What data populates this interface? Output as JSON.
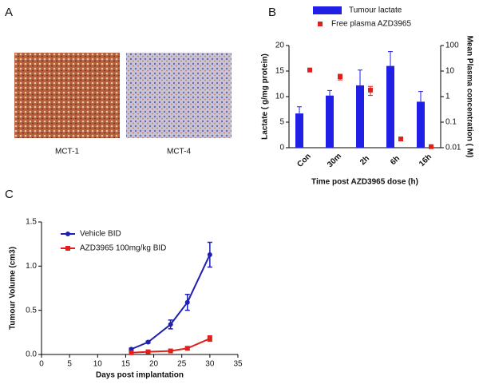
{
  "figure": {
    "panel_labels": [
      "A",
      "B",
      "C"
    ],
    "image_captions": [
      "MCT-1",
      "MCT-4"
    ]
  },
  "chart_data": [
    {
      "type": "bar",
      "categories": [
        "Con",
        "30m",
        "2h",
        "6h",
        "16h"
      ],
      "xlabel": "Time post AZD3965 dose (h)",
      "ylabel": "Lactate (  g/mg protein)",
      "y2label": "Mean Plasma concentration (  M)",
      "ylim": [
        0,
        20
      ],
      "yticks": [
        0,
        5,
        10,
        15,
        20
      ],
      "y2lim": [
        0.01,
        100
      ],
      "y2ticks": [
        0.01,
        0.1,
        1,
        10,
        100
      ],
      "y2log": true,
      "series": [
        {
          "name": "Tumour lactate",
          "color": "#1f1fe6",
          "values": [
            6.7,
            10.2,
            12.2,
            16,
            9
          ],
          "errors": [
            1.3,
            1,
            3,
            2.8,
            2
          ]
        },
        {
          "name": "Free plasma AZD3965",
          "color": "#e0201a",
          "axis": "y2",
          "values": [
            11,
            6,
            1.8,
            0.022,
            0.011
          ],
          "errors": [
            null,
            1.5,
            0.7,
            null,
            null
          ]
        }
      ]
    },
    {
      "type": "line",
      "x": [
        16,
        19,
        23,
        26,
        30
      ],
      "xlabel": "Days post implantation",
      "ylabel": "Tumour Volume (cm3)",
      "xlim": [
        0,
        35
      ],
      "xticks": [
        0,
        5,
        10,
        15,
        20,
        25,
        30,
        35
      ],
      "ylim": [
        0,
        1.5
      ],
      "yticks": [
        {
          "value": 0,
          "label": "0.0"
        },
        0.5,
        {
          "value": 1,
          "label": "1.0"
        },
        1.5
      ],
      "series": [
        {
          "name": "Vehicle BID",
          "color": "#1f1fb0",
          "marker": "circle",
          "values": [
            0.06,
            0.14,
            0.34,
            0.59,
            1.13
          ],
          "errors": [
            0.01,
            0.01,
            0.05,
            0.09,
            0.14
          ]
        },
        {
          "name": "AZD3965 100mg/kg BID",
          "color": "#e0201a",
          "marker": "square",
          "values": [
            0.02,
            0.03,
            0.04,
            0.07,
            0.18
          ],
          "errors": [
            null,
            null,
            0.01,
            0.01,
            0.03
          ]
        }
      ]
    }
  ]
}
